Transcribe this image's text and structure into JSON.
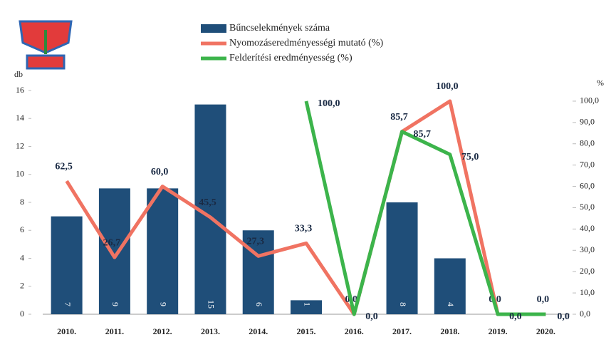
{
  "chart_data": {
    "type": "bar-line",
    "categories": [
      "2010.",
      "2011.",
      "2012.",
      "2013.",
      "2014.",
      "2015.",
      "2016.",
      "2017.",
      "2018.",
      "2019.",
      "2020."
    ],
    "ylabel": "db",
    "y2label": "%",
    "ylim": [
      0,
      16
    ],
    "yticks": [
      0,
      2,
      4,
      6,
      8,
      10,
      12,
      14,
      16
    ],
    "y2lim": [
      0,
      105
    ],
    "y2ticks": [
      {
        "value": 0,
        "label": "0,0"
      },
      {
        "value": 10,
        "label": "10,0"
      },
      {
        "value": 20,
        "label": "20,0"
      },
      {
        "value": 30,
        "label": "30,0"
      },
      {
        "value": 40,
        "label": "40,0"
      },
      {
        "value": 50,
        "label": "50,0"
      },
      {
        "value": 60,
        "label": "60,0"
      },
      {
        "value": 70,
        "label": "70,0"
      },
      {
        "value": 80,
        "label": "80,0"
      },
      {
        "value": 90,
        "label": "90,0"
      },
      {
        "value": 100,
        "label": "100,0"
      }
    ],
    "series": [
      {
        "name": "Bűncselekmények száma",
        "kind": "bar",
        "color": "#1f4e79",
        "values": [
          7,
          9,
          9,
          15,
          6,
          1,
          0,
          8,
          4,
          0,
          0
        ],
        "value_labels": [
          "7",
          "9",
          "9",
          "15",
          "6",
          "1",
          null,
          "8",
          "4",
          null,
          null
        ]
      },
      {
        "name": "Nyomozáseredményességi mutató (%)",
        "kind": "line",
        "axis": "y2",
        "color": "#f07362",
        "values": [
          62.5,
          26.7,
          60.0,
          45.5,
          27.3,
          33.3,
          0.0,
          85.7,
          100.0,
          0.0,
          0.0
        ],
        "value_labels": [
          "62,5",
          "26,7",
          "60,0",
          "45,5",
          "27,3",
          "33,3",
          "0,0",
          "85,7",
          "100,0",
          "0,0",
          "0,0"
        ]
      },
      {
        "name": "Felderítési eredményesség (%)",
        "kind": "line",
        "axis": "y2",
        "color": "#3cb44b",
        "values": [
          null,
          null,
          null,
          null,
          null,
          100.0,
          0.0,
          85.7,
          75.0,
          0.0,
          0.0
        ],
        "value_labels": [
          null,
          null,
          null,
          null,
          null,
          "100,0",
          "0,0",
          "85,7",
          "75,0",
          "0,0",
          "0,0"
        ]
      }
    ]
  }
}
